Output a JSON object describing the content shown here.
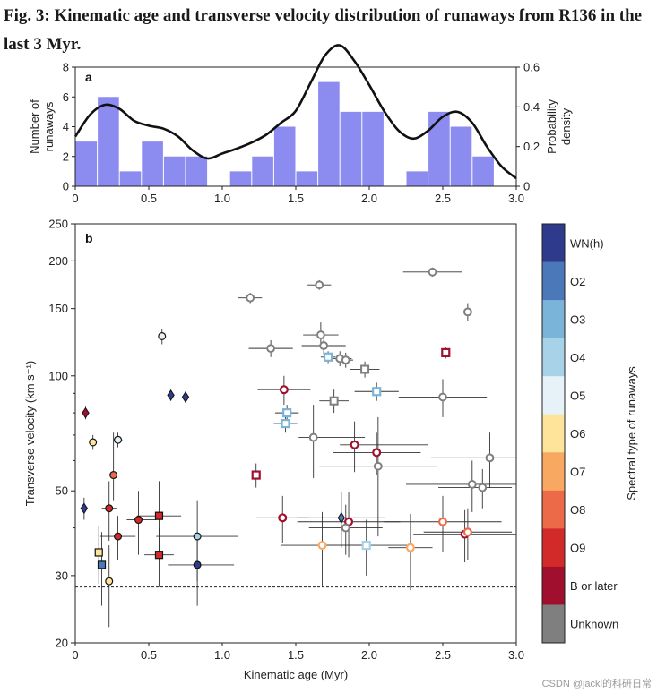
{
  "title": "Fig. 3: Kinematic age and transverse velocity distribution of runaways from R136 in the last 3 Myr.",
  "watermark": "CSDN @jackl的科研日常",
  "chart_data": [
    {
      "type": "bar",
      "panel": "a",
      "xlabel": "",
      "ylabel": "Number of runaways",
      "y2label": "Probability density",
      "xlim": [
        0,
        3.0
      ],
      "ylim": [
        0,
        8
      ],
      "y2lim": [
        0,
        0.6
      ],
      "xticks": [
        "0",
        "0.5",
        "1.0",
        "1.5",
        "2.0",
        "2.5",
        "3.0"
      ],
      "yticks": [
        "0",
        "2",
        "4",
        "6",
        "8"
      ],
      "y2ticks": [
        "0",
        "0.2",
        "0.4",
        "0.6"
      ],
      "bin_width": 0.15,
      "bin_starts": [
        0,
        0.15,
        0.3,
        0.45,
        0.6,
        0.75,
        0.9,
        1.05,
        1.2,
        1.35,
        1.5,
        1.65,
        1.8,
        1.95,
        2.1,
        2.25,
        2.4,
        2.55,
        2.7
      ],
      "counts": [
        3,
        6,
        1,
        3,
        2,
        2,
        0,
        1,
        2,
        4,
        1,
        7,
        5,
        5,
        0,
        1,
        5,
        4,
        2
      ],
      "bar_color": "#8c8cf0",
      "density_curve": {
        "x": [
          0,
          0.1,
          0.2,
          0.3,
          0.4,
          0.5,
          0.6,
          0.7,
          0.8,
          0.9,
          1.0,
          1.1,
          1.2,
          1.3,
          1.4,
          1.5,
          1.6,
          1.7,
          1.8,
          1.9,
          2.0,
          2.1,
          2.2,
          2.3,
          2.4,
          2.5,
          2.6,
          2.7,
          2.8,
          2.9,
          3.0
        ],
        "y": [
          0.25,
          0.36,
          0.41,
          0.39,
          0.33,
          0.305,
          0.29,
          0.25,
          0.18,
          0.14,
          0.165,
          0.19,
          0.22,
          0.26,
          0.32,
          0.38,
          0.52,
          0.66,
          0.71,
          0.63,
          0.51,
          0.38,
          0.28,
          0.24,
          0.28,
          0.35,
          0.375,
          0.32,
          0.2,
          0.1,
          0.04
        ]
      }
    },
    {
      "type": "scatter",
      "panel": "b",
      "xlabel": "Kinematic age (Myr)",
      "ylabel": "Transverse velocity (km s⁻¹)",
      "yscale": "log",
      "xlim": [
        0,
        3.0
      ],
      "ylim": [
        20,
        250
      ],
      "xticks": [
        "0",
        "0.5",
        "1.0",
        "1.5",
        "2.0",
        "2.5",
        "3.0"
      ],
      "yticks": [
        20,
        30,
        50,
        100,
        150,
        200,
        250
      ],
      "threshold_line": 28,
      "colorbar": {
        "label": "Spectral type of runaways",
        "entries": [
          {
            "label": "WN(h)",
            "color": "#2e3a8c"
          },
          {
            "label": "O2",
            "color": "#4a78b8"
          },
          {
            "label": "O3",
            "color": "#7ab4d8"
          },
          {
            "label": "O4",
            "color": "#a8d2e8"
          },
          {
            "label": "O5",
            "color": "#e6f1f8"
          },
          {
            "label": "O6",
            "color": "#fde49a"
          },
          {
            "label": "O7",
            "color": "#f8a860"
          },
          {
            "label": "O8",
            "color": "#ec6a48"
          },
          {
            "label": "O9",
            "color": "#d22a28"
          },
          {
            "label": "B or later",
            "color": "#a0102e"
          },
          {
            "label": "Unknown",
            "color": "#7f7f7f"
          }
        ]
      },
      "points": [
        {
          "x": 0.07,
          "y": 80,
          "type": "B or later",
          "marker": "diamond",
          "xerr": [
            0.0,
            0.0
          ],
          "yerr": [
            3,
            3
          ]
        },
        {
          "x": 0.06,
          "y": 45,
          "type": "WN(h)",
          "marker": "diamond",
          "xerr": [
            0.0,
            0.0
          ],
          "yerr": [
            3,
            3
          ]
        },
        {
          "x": 0.12,
          "y": 67,
          "type": "O6",
          "marker": "circle",
          "xerr": [
            0.0,
            0.0
          ],
          "yerr": [
            3,
            3
          ]
        },
        {
          "x": 0.29,
          "y": 68,
          "type": "O5",
          "marker": "circle",
          "xerr": [
            0.03,
            0.03
          ],
          "yerr": [
            3,
            3
          ]
        },
        {
          "x": 0.26,
          "y": 55,
          "type": "O8",
          "marker": "circle",
          "xerr": [
            0.03,
            0.03
          ],
          "yerr": [
            8,
            16
          ]
        },
        {
          "x": 0.23,
          "y": 45,
          "type": "O9",
          "marker": "circle",
          "xerr": [
            0.05,
            0.05
          ],
          "yerr": [
            8,
            8
          ]
        },
        {
          "x": 0.29,
          "y": 38,
          "type": "O9",
          "marker": "circle",
          "xerr": [
            0.12,
            0.12
          ],
          "yerr": [
            5,
            5
          ]
        },
        {
          "x": 0.43,
          "y": 42,
          "type": "O9",
          "marker": "circle",
          "xerr": [
            0.08,
            0.12
          ],
          "yerr": [
            8,
            8
          ]
        },
        {
          "x": 0.57,
          "y": 43,
          "type": "O9",
          "marker": "square",
          "xerr": [
            0.15,
            0.15
          ],
          "yerr": [
            10,
            10
          ]
        },
        {
          "x": 0.57,
          "y": 34,
          "type": "O9",
          "marker": "square",
          "xerr": [
            0.1,
            0.1
          ],
          "yerr": [
            6,
            6
          ]
        },
        {
          "x": 0.16,
          "y": 34.5,
          "type": "O6",
          "marker": "square",
          "xerr": [
            0.0,
            0.0
          ],
          "yerr": [
            6,
            6
          ]
        },
        {
          "x": 0.18,
          "y": 32,
          "type": "O2",
          "marker": "square",
          "xerr": [
            0.0,
            0.0
          ],
          "yerr": [
            7,
            7
          ]
        },
        {
          "x": 0.23,
          "y": 29,
          "type": "O6",
          "marker": "circle",
          "xerr": [
            0.0,
            0.0
          ],
          "yerr": [
            7,
            7
          ]
        },
        {
          "x": 0.59,
          "y": 127,
          "type": "O5",
          "marker": "circle",
          "xerr": [
            0.0,
            0.0
          ],
          "yerr": [
            6,
            6
          ]
        },
        {
          "x": 0.65,
          "y": 89,
          "type": "WN(h)",
          "marker": "diamond",
          "xerr": [
            0.0,
            0.0
          ],
          "yerr": [
            3,
            3
          ]
        },
        {
          "x": 0.75,
          "y": 88,
          "type": "WN(h)",
          "marker": "diamond",
          "xerr": [
            0.0,
            0.0
          ],
          "yerr": [
            3,
            3
          ]
        },
        {
          "x": 0.83,
          "y": 38,
          "type": "O4",
          "marker": "circle",
          "xerr": [
            0.28,
            0.28
          ],
          "yerr": [
            9,
            9
          ]
        },
        {
          "x": 0.83,
          "y": 32,
          "type": "WN(h)",
          "marker": "circle",
          "xerr": [
            0.2,
            0.25
          ],
          "yerr": [
            7,
            7
          ]
        },
        {
          "x": 1.19,
          "y": 160,
          "type": "Unknown",
          "marker": "circle",
          "xerr": [
            0.08,
            0.08
          ],
          "yerr": [
            5,
            5
          ]
        },
        {
          "x": 1.66,
          "y": 173,
          "type": "Unknown",
          "marker": "circle",
          "xerr": [
            0.08,
            0.08
          ],
          "yerr": [
            5,
            5
          ]
        },
        {
          "x": 2.43,
          "y": 187,
          "type": "Unknown",
          "marker": "circle",
          "xerr": [
            0.2,
            0.2
          ],
          "yerr": [
            5,
            5
          ]
        },
        {
          "x": 2.67,
          "y": 147,
          "type": "Unknown",
          "marker": "circle",
          "xerr": [
            0.22,
            0.2
          ],
          "yerr": [
            8,
            8
          ]
        },
        {
          "x": 1.67,
          "y": 128,
          "type": "Unknown",
          "marker": "circle",
          "xerr": [
            0.12,
            0.12
          ],
          "yerr": [
            10,
            10
          ]
        },
        {
          "x": 1.69,
          "y": 120,
          "type": "Unknown",
          "marker": "circle",
          "xerr": [
            0.15,
            0.15
          ],
          "yerr": [
            6,
            6
          ]
        },
        {
          "x": 1.33,
          "y": 118,
          "type": "Unknown",
          "marker": "circle",
          "xerr": [
            0.15,
            0.15
          ],
          "yerr": [
            6,
            6
          ]
        },
        {
          "x": 1.72,
          "y": 112,
          "type": "O3",
          "marker": "square",
          "xerr": [
            0.05,
            0.05
          ],
          "yerr": [
            4,
            4
          ]
        },
        {
          "x": 1.8,
          "y": 111,
          "type": "Unknown",
          "marker": "circle",
          "xerr": [
            0.08,
            0.08
          ],
          "yerr": [
            5,
            5
          ]
        },
        {
          "x": 1.84,
          "y": 110,
          "type": "Unknown",
          "marker": "circle",
          "xerr": [
            0.05,
            0.05
          ],
          "yerr": [
            5,
            5
          ]
        },
        {
          "x": 1.97,
          "y": 104,
          "type": "Unknown",
          "marker": "square",
          "xerr": [
            0.1,
            0.1
          ],
          "yerr": [
            5,
            5
          ]
        },
        {
          "x": 2.52,
          "y": 115,
          "type": "B or later",
          "marker": "square",
          "xerr": [
            0.0,
            0.0
          ],
          "yerr": [
            4,
            4
          ]
        },
        {
          "x": 1.42,
          "y": 92,
          "type": "B or later",
          "marker": "circle",
          "xerr": [
            0.18,
            0.18
          ],
          "yerr": [
            8,
            8
          ]
        },
        {
          "x": 2.05,
          "y": 91,
          "type": "O3",
          "marker": "square",
          "xerr": [
            0.15,
            0.15
          ],
          "yerr": [
            5,
            5
          ]
        },
        {
          "x": 2.5,
          "y": 88,
          "type": "Unknown",
          "marker": "circle",
          "xerr": [
            0.3,
            0.3
          ],
          "yerr": [
            10,
            10
          ]
        },
        {
          "x": 1.76,
          "y": 86,
          "type": "Unknown",
          "marker": "square",
          "xerr": [
            0.1,
            0.1
          ],
          "yerr": [
            6,
            6
          ]
        },
        {
          "x": 1.44,
          "y": 80,
          "type": "O3",
          "marker": "square",
          "xerr": [
            0.08,
            0.08
          ],
          "yerr": [
            4,
            4
          ]
        },
        {
          "x": 1.43,
          "y": 75,
          "type": "O3",
          "marker": "square",
          "xerr": [
            0.08,
            0.08
          ],
          "yerr": [
            4,
            4
          ]
        },
        {
          "x": 1.62,
          "y": 69,
          "type": "Unknown",
          "marker": "circle",
          "xerr": [
            0.1,
            0.35
          ],
          "yerr": [
            15,
            15
          ]
        },
        {
          "x": 1.9,
          "y": 66,
          "type": "B or later",
          "marker": "circle",
          "xerr": [
            0.1,
            0.5
          ],
          "yerr": [
            10,
            10
          ]
        },
        {
          "x": 2.05,
          "y": 63,
          "type": "B or later",
          "marker": "circle",
          "xerr": [
            0.3,
            0.3
          ],
          "yerr": [
            8,
            8
          ]
        },
        {
          "x": 2.06,
          "y": 58,
          "type": "Unknown",
          "marker": "circle",
          "xerr": [
            0.4,
            0.4
          ],
          "yerr": [
            20,
            20
          ]
        },
        {
          "x": 2.82,
          "y": 61,
          "type": "Unknown",
          "marker": "circle",
          "xerr": [
            0.4,
            0.3
          ],
          "yerr": [
            10,
            10
          ]
        },
        {
          "x": 2.7,
          "y": 52,
          "type": "Unknown",
          "marker": "circle",
          "xerr": [
            0.45,
            0.3
          ],
          "yerr": [
            8,
            8
          ]
        },
        {
          "x": 2.77,
          "y": 51,
          "type": "Unknown",
          "marker": "circle",
          "xerr": [
            0.3,
            0.2
          ],
          "yerr": [
            6,
            6
          ]
        },
        {
          "x": 1.23,
          "y": 55,
          "type": "B or later",
          "marker": "square",
          "xerr": [
            0.08,
            0.08
          ],
          "yerr": [
            4,
            4
          ]
        },
        {
          "x": 1.41,
          "y": 42.5,
          "type": "B or later",
          "marker": "circle",
          "xerr": [
            0.18,
            0.18
          ],
          "yerr": [
            6,
            6
          ]
        },
        {
          "x": 1.81,
          "y": 42.5,
          "type": "O2",
          "marker": "diamond",
          "xerr": [
            0.3,
            0.3
          ],
          "yerr": [
            7,
            7
          ]
        },
        {
          "x": 1.86,
          "y": 41.5,
          "type": "B or later",
          "marker": "circle",
          "xerr": [
            0.35,
            0.35
          ],
          "yerr": [
            8,
            8
          ]
        },
        {
          "x": 1.84,
          "y": 40,
          "type": "Unknown",
          "marker": "circle",
          "xerr": [
            0.25,
            0.25
          ],
          "yerr": [
            6,
            6
          ]
        },
        {
          "x": 2.5,
          "y": 41.5,
          "type": "O8",
          "marker": "circle",
          "xerr": [
            0.4,
            0.4
          ],
          "yerr": [
            7,
            7
          ]
        },
        {
          "x": 2.65,
          "y": 38.5,
          "type": "B or later",
          "marker": "circle",
          "xerr": [
            0.35,
            0.35
          ],
          "yerr": [
            6,
            6
          ]
        },
        {
          "x": 2.67,
          "y": 39,
          "type": "O8",
          "marker": "circle",
          "xerr": [
            0.3,
            0.3
          ],
          "yerr": [
            6,
            6
          ]
        },
        {
          "x": 1.68,
          "y": 36,
          "type": "O7",
          "marker": "circle",
          "xerr": [
            0.28,
            0.28
          ],
          "yerr": [
            8,
            8
          ]
        },
        {
          "x": 1.98,
          "y": 36,
          "type": "O4",
          "marker": "square",
          "xerr": [
            0.3,
            0.3
          ],
          "yerr": [
            6,
            6
          ]
        },
        {
          "x": 2.28,
          "y": 35.5,
          "type": "O7",
          "marker": "circle",
          "xerr": [
            0.15,
            0.15
          ],
          "yerr": [
            8,
            8
          ]
        }
      ]
    }
  ]
}
